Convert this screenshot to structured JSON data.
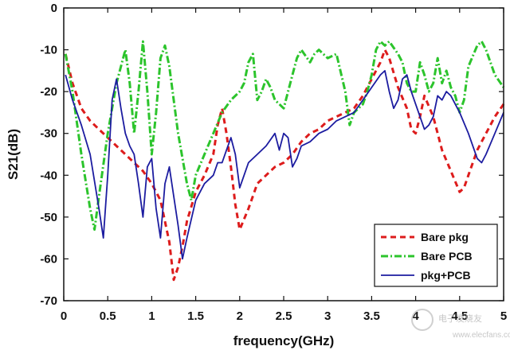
{
  "chart_data": {
    "type": "line",
    "xlabel": "frequency(GHz)",
    "ylabel": "S21(dB)",
    "xlim": [
      0,
      5
    ],
    "ylim": [
      -70,
      0
    ],
    "x_ticks": [
      "0",
      "0.5",
      "1",
      "1.5",
      "2",
      "2.5",
      "3",
      "3.5",
      "4",
      "4.5",
      "5"
    ],
    "y_ticks": [
      "0",
      "-10",
      "-20",
      "-30",
      "-40",
      "-50",
      "-60",
      "-70"
    ],
    "grid": false,
    "legend_position": "bottom-right",
    "series": [
      {
        "name": "Bare pkg",
        "color": "#dd1c1c",
        "style": "dashed",
        "points": [
          [
            0.02,
            -11
          ],
          [
            0.1,
            -18
          ],
          [
            0.2,
            -24
          ],
          [
            0.3,
            -27
          ],
          [
            0.4,
            -29
          ],
          [
            0.5,
            -31
          ],
          [
            0.6,
            -33
          ],
          [
            0.7,
            -35
          ],
          [
            0.8,
            -37
          ],
          [
            0.9,
            -39
          ],
          [
            1.0,
            -42
          ],
          [
            1.1,
            -46
          ],
          [
            1.2,
            -56
          ],
          [
            1.25,
            -65
          ],
          [
            1.3,
            -62
          ],
          [
            1.35,
            -57
          ],
          [
            1.4,
            -51
          ],
          [
            1.5,
            -44
          ],
          [
            1.6,
            -40
          ],
          [
            1.7,
            -35
          ],
          [
            1.75,
            -28
          ],
          [
            1.8,
            -24
          ],
          [
            1.85,
            -30
          ],
          [
            1.9,
            -38
          ],
          [
            1.95,
            -47
          ],
          [
            2.0,
            -53
          ],
          [
            2.1,
            -48
          ],
          [
            2.2,
            -42
          ],
          [
            2.3,
            -40
          ],
          [
            2.4,
            -38
          ],
          [
            2.5,
            -37
          ],
          [
            2.6,
            -35
          ],
          [
            2.7,
            -32
          ],
          [
            2.8,
            -30
          ],
          [
            2.9,
            -29
          ],
          [
            3.0,
            -27
          ],
          [
            3.1,
            -26
          ],
          [
            3.2,
            -25
          ],
          [
            3.3,
            -24
          ],
          [
            3.4,
            -21
          ],
          [
            3.5,
            -17
          ],
          [
            3.6,
            -13
          ],
          [
            3.65,
            -10
          ],
          [
            3.7,
            -12
          ],
          [
            3.8,
            -19
          ],
          [
            3.9,
            -24
          ],
          [
            3.95,
            -29
          ],
          [
            4.0,
            -30
          ],
          [
            4.05,
            -26
          ],
          [
            4.1,
            -21
          ],
          [
            4.2,
            -26
          ],
          [
            4.3,
            -34
          ],
          [
            4.4,
            -39
          ],
          [
            4.5,
            -44
          ],
          [
            4.55,
            -43
          ],
          [
            4.6,
            -40
          ],
          [
            4.7,
            -34
          ],
          [
            4.8,
            -30
          ],
          [
            4.9,
            -26
          ],
          [
            5.0,
            -23
          ]
        ]
      },
      {
        "name": "Bare PCB",
        "color": "#2cc42c",
        "style": "dashdot",
        "points": [
          [
            0.02,
            -11
          ],
          [
            0.1,
            -20
          ],
          [
            0.2,
            -35
          ],
          [
            0.3,
            -48
          ],
          [
            0.35,
            -53
          ],
          [
            0.4,
            -45
          ],
          [
            0.5,
            -30
          ],
          [
            0.6,
            -18
          ],
          [
            0.7,
            -10
          ],
          [
            0.75,
            -18
          ],
          [
            0.8,
            -30
          ],
          [
            0.85,
            -20
          ],
          [
            0.9,
            -8
          ],
          [
            0.95,
            -20
          ],
          [
            1.0,
            -35
          ],
          [
            1.05,
            -25
          ],
          [
            1.1,
            -12
          ],
          [
            1.15,
            -9
          ],
          [
            1.2,
            -14
          ],
          [
            1.3,
            -30
          ],
          [
            1.4,
            -42
          ],
          [
            1.45,
            -46
          ],
          [
            1.5,
            -40
          ],
          [
            1.6,
            -35
          ],
          [
            1.7,
            -30
          ],
          [
            1.8,
            -25
          ],
          [
            1.9,
            -22
          ],
          [
            2.0,
            -20
          ],
          [
            2.05,
            -18
          ],
          [
            2.1,
            -13
          ],
          [
            2.15,
            -11
          ],
          [
            2.2,
            -22
          ],
          [
            2.25,
            -20
          ],
          [
            2.3,
            -17
          ],
          [
            2.35,
            -19
          ],
          [
            2.4,
            -22
          ],
          [
            2.5,
            -24
          ],
          [
            2.55,
            -20
          ],
          [
            2.6,
            -16
          ],
          [
            2.65,
            -12
          ],
          [
            2.7,
            -10
          ],
          [
            2.8,
            -13
          ],
          [
            2.85,
            -11
          ],
          [
            2.9,
            -10
          ],
          [
            3.0,
            -12
          ],
          [
            3.1,
            -11
          ],
          [
            3.2,
            -20
          ],
          [
            3.25,
            -28
          ],
          [
            3.3,
            -25
          ],
          [
            3.4,
            -23
          ],
          [
            3.45,
            -20
          ],
          [
            3.5,
            -16
          ],
          [
            3.55,
            -10
          ],
          [
            3.6,
            -8
          ],
          [
            3.65,
            -9
          ],
          [
            3.7,
            -8
          ],
          [
            3.8,
            -11
          ],
          [
            3.85,
            -13
          ],
          [
            3.9,
            -18
          ],
          [
            3.95,
            -20
          ],
          [
            4.0,
            -20
          ],
          [
            4.05,
            -13
          ],
          [
            4.1,
            -16
          ],
          [
            4.15,
            -20
          ],
          [
            4.2,
            -18
          ],
          [
            4.25,
            -12
          ],
          [
            4.3,
            -18
          ],
          [
            4.35,
            -15
          ],
          [
            4.4,
            -19
          ],
          [
            4.45,
            -21
          ],
          [
            4.5,
            -25
          ],
          [
            4.55,
            -22
          ],
          [
            4.6,
            -14
          ],
          [
            4.7,
            -9
          ],
          [
            4.75,
            -8
          ],
          [
            4.8,
            -10
          ],
          [
            4.9,
            -16
          ],
          [
            5.0,
            -19
          ]
        ]
      },
      {
        "name": "pkg+PCB",
        "color": "#1c1ca0",
        "style": "solid",
        "points": [
          [
            0.02,
            -16
          ],
          [
            0.1,
            -22
          ],
          [
            0.2,
            -28
          ],
          [
            0.3,
            -35
          ],
          [
            0.4,
            -48
          ],
          [
            0.45,
            -55
          ],
          [
            0.5,
            -40
          ],
          [
            0.55,
            -22
          ],
          [
            0.6,
            -17
          ],
          [
            0.65,
            -24
          ],
          [
            0.7,
            -30
          ],
          [
            0.75,
            -33
          ],
          [
            0.8,
            -35
          ],
          [
            0.85,
            -42
          ],
          [
            0.9,
            -50
          ],
          [
            0.95,
            -38
          ],
          [
            1.0,
            -36
          ],
          [
            1.05,
            -48
          ],
          [
            1.1,
            -55
          ],
          [
            1.15,
            -42
          ],
          [
            1.2,
            -38
          ],
          [
            1.25,
            -45
          ],
          [
            1.3,
            -52
          ],
          [
            1.35,
            -60
          ],
          [
            1.4,
            -55
          ],
          [
            1.5,
            -46
          ],
          [
            1.6,
            -42
          ],
          [
            1.7,
            -40
          ],
          [
            1.75,
            -37
          ],
          [
            1.8,
            -37
          ],
          [
            1.85,
            -34
          ],
          [
            1.9,
            -31
          ],
          [
            1.95,
            -35
          ],
          [
            2.0,
            -43
          ],
          [
            2.05,
            -40
          ],
          [
            2.1,
            -37
          ],
          [
            2.2,
            -35
          ],
          [
            2.3,
            -33
          ],
          [
            2.4,
            -30
          ],
          [
            2.45,
            -34
          ],
          [
            2.5,
            -30
          ],
          [
            2.55,
            -31
          ],
          [
            2.6,
            -38
          ],
          [
            2.65,
            -36
          ],
          [
            2.7,
            -33
          ],
          [
            2.8,
            -32
          ],
          [
            2.9,
            -30
          ],
          [
            3.0,
            -29
          ],
          [
            3.1,
            -27
          ],
          [
            3.2,
            -26
          ],
          [
            3.3,
            -25
          ],
          [
            3.4,
            -22
          ],
          [
            3.5,
            -19
          ],
          [
            3.6,
            -16
          ],
          [
            3.65,
            -15
          ],
          [
            3.7,
            -20
          ],
          [
            3.75,
            -24
          ],
          [
            3.8,
            -22
          ],
          [
            3.85,
            -17
          ],
          [
            3.9,
            -16
          ],
          [
            3.95,
            -20
          ],
          [
            4.0,
            -23
          ],
          [
            4.05,
            -26
          ],
          [
            4.1,
            -29
          ],
          [
            4.15,
            -28
          ],
          [
            4.2,
            -26
          ],
          [
            4.25,
            -21
          ],
          [
            4.3,
            -22
          ],
          [
            4.35,
            -20
          ],
          [
            4.4,
            -21
          ],
          [
            4.5,
            -25
          ],
          [
            4.6,
            -30
          ],
          [
            4.7,
            -36
          ],
          [
            4.75,
            -37
          ],
          [
            4.8,
            -35
          ],
          [
            4.9,
            -30
          ],
          [
            5.0,
            -25
          ]
        ]
      }
    ]
  },
  "watermark": {
    "text": "电子发烧友",
    "subtext": "www.elecfans.com"
  }
}
